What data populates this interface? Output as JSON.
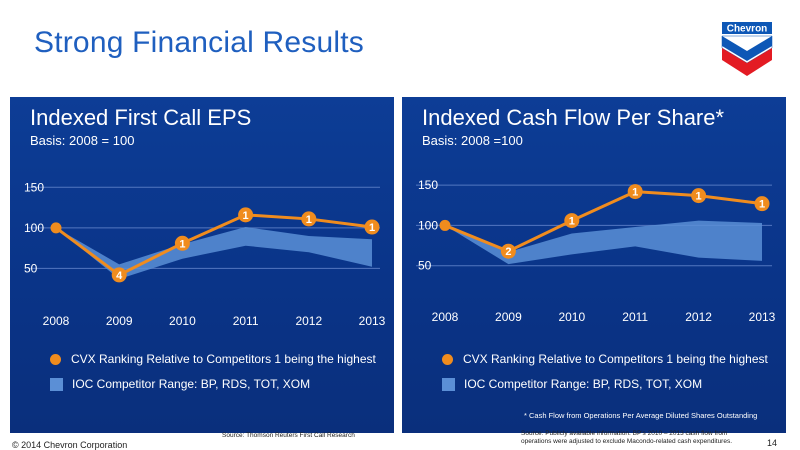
{
  "slide": {
    "title": "Strong Financial Results",
    "logo_text": "Chevron",
    "copyright": "© 2014 Chevron Corporation",
    "page_number": "14"
  },
  "colors": {
    "title_blue": "#1f5fbf",
    "panel_blue": "#0a3488",
    "line_orange": "#f08c1e",
    "band_blue": "#5b8fd6"
  },
  "chart_data": [
    {
      "type": "line",
      "title": "Indexed First Call EPS",
      "subtitle": "Basis: 2008 = 100",
      "x": [
        "2008",
        "2009",
        "2010",
        "2011",
        "2012",
        "2013"
      ],
      "y_ticks": [
        50,
        100,
        150
      ],
      "ylim": [
        0,
        175
      ],
      "series": [
        {
          "name": "CVX Ranking Relative to Competitors 1 being the highest",
          "values": [
            100,
            42,
            81,
            116,
            111,
            101
          ],
          "ranks": [
            "",
            "4",
            "1",
            "1",
            "1",
            "1"
          ]
        },
        {
          "name": "IOC Competitor Range: BP, RDS, TOT, XOM",
          "type": "band",
          "upper": [
            100,
            55,
            80,
            101,
            90,
            86
          ],
          "lower": [
            100,
            37,
            62,
            78,
            70,
            52
          ]
        }
      ],
      "legend": [
        "CVX Ranking Relative to Competitors 1 being the highest",
        "IOC Competitor Range: BP, RDS, TOT, XOM"
      ],
      "grid": true,
      "source": "Source: Thomson Reuters First Call Research",
      "footnote": ""
    },
    {
      "type": "line",
      "title": "Indexed Cash Flow Per Share*",
      "subtitle": "Basis: 2008 =100",
      "x": [
        "2008",
        "2009",
        "2010",
        "2011",
        "2012",
        "2013"
      ],
      "y_ticks": [
        50,
        100,
        150
      ],
      "ylim": [
        0,
        175
      ],
      "series": [
        {
          "name": "CVX Ranking Relative to Competitors 1 being the highest",
          "values": [
            100,
            68,
            106,
            142,
            137,
            127
          ],
          "ranks": [
            "",
            "2",
            "1",
            "1",
            "1",
            "1"
          ]
        },
        {
          "name": "IOC Competitor Range: BP, RDS, TOT, XOM",
          "type": "band",
          "upper": [
            100,
            67,
            90,
            98,
            106,
            103
          ],
          "lower": [
            100,
            52,
            64,
            74,
            60,
            56
          ]
        }
      ],
      "legend": [
        "CVX Ranking Relative to Competitors 1 being the highest",
        "IOC Competitor Range: BP, RDS, TOT, XOM"
      ],
      "grid": true,
      "source": "Source: Publicly available information. BP's 2010 – 2013 cash flow from operations were adjusted to exclude Macondo-related cash expenditures.",
      "footnote": "* Cash Flow from Operations Per Average Diluted Shares Outstanding"
    }
  ]
}
